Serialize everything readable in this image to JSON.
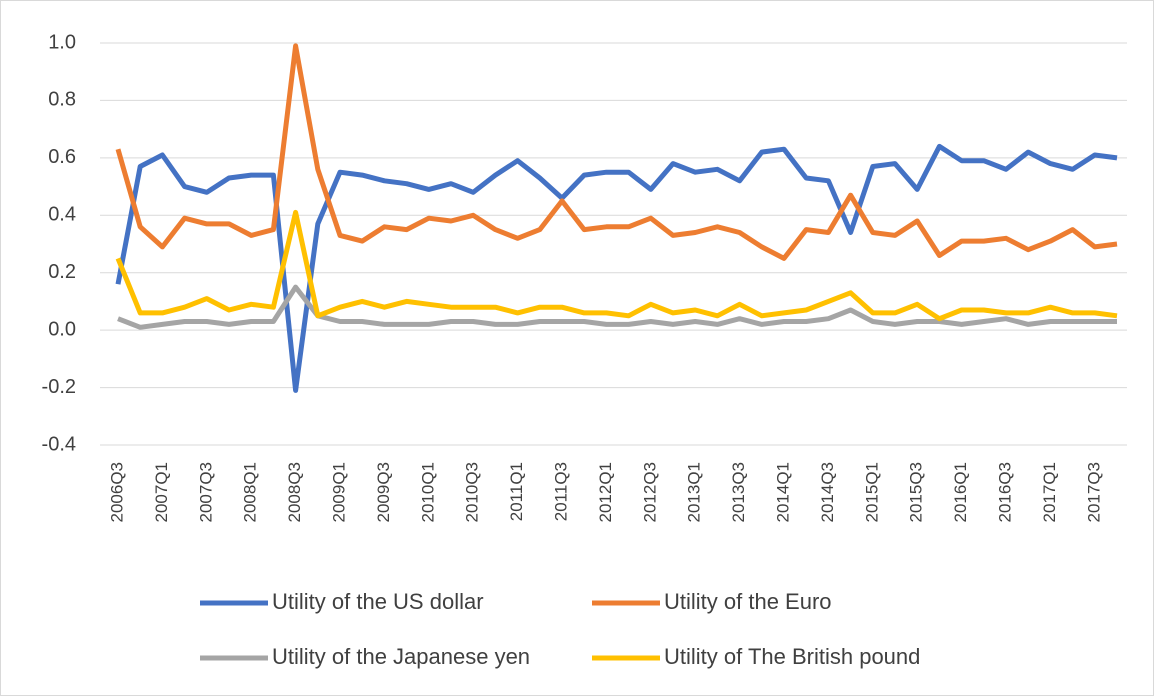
{
  "chart_data": {
    "type": "line",
    "categories": [
      "2006Q3",
      null,
      "2007Q1",
      null,
      "2007Q3",
      null,
      "2008Q1",
      null,
      "2008Q3",
      null,
      "2009Q1",
      null,
      "2009Q3",
      null,
      "2010Q1",
      null,
      "2010Q3",
      null,
      "2011Q1",
      null,
      "2011Q3",
      null,
      "2012Q1",
      null,
      "2012Q3",
      null,
      "2013Q1",
      null,
      "2013Q3",
      null,
      "2014Q1",
      null,
      "2014Q3",
      null,
      "2015Q1",
      null,
      "2015Q3",
      null,
      "2016Q1",
      null,
      "2016Q3",
      null,
      "2017Q1",
      null,
      "2017Q3",
      null
    ],
    "series": [
      {
        "name": "Utility of the US dollar",
        "color": "#4472c4",
        "values": [
          0.16,
          0.57,
          0.61,
          0.5,
          0.48,
          0.53,
          0.54,
          0.54,
          -0.21,
          0.37,
          0.55,
          0.54,
          0.52,
          0.51,
          0.49,
          0.51,
          0.48,
          0.54,
          0.59,
          0.53,
          0.46,
          0.54,
          0.55,
          0.55,
          0.49,
          0.58,
          0.55,
          0.56,
          0.52,
          0.62,
          0.63,
          0.53,
          0.52,
          0.34,
          0.57,
          0.58,
          0.49,
          0.64,
          0.59,
          0.59,
          0.56,
          0.62,
          0.58,
          0.56,
          0.61,
          0.6
        ]
      },
      {
        "name": "Utility of the Euro",
        "color": "#ed7d31",
        "values": [
          0.63,
          0.36,
          0.29,
          0.39,
          0.37,
          0.37,
          0.33,
          0.35,
          0.99,
          0.56,
          0.33,
          0.31,
          0.36,
          0.35,
          0.39,
          0.38,
          0.4,
          0.35,
          0.32,
          0.35,
          0.45,
          0.35,
          0.36,
          0.36,
          0.39,
          0.33,
          0.34,
          0.36,
          0.34,
          0.29,
          0.25,
          0.35,
          0.34,
          0.47,
          0.34,
          0.33,
          0.38,
          0.26,
          0.31,
          0.31,
          0.32,
          0.28,
          0.31,
          0.35,
          0.29,
          0.3
        ]
      },
      {
        "name": "Utility of the Japanese yen",
        "color": "#a5a5a5",
        "values": [
          0.04,
          0.01,
          0.02,
          0.03,
          0.03,
          0.02,
          0.03,
          0.03,
          0.15,
          0.05,
          0.03,
          0.03,
          0.02,
          0.02,
          0.02,
          0.03,
          0.03,
          0.02,
          0.02,
          0.03,
          0.03,
          0.03,
          0.02,
          0.02,
          0.03,
          0.02,
          0.03,
          0.02,
          0.04,
          0.02,
          0.03,
          0.03,
          0.04,
          0.07,
          0.03,
          0.02,
          0.03,
          0.03,
          0.02,
          0.03,
          0.04,
          0.02,
          0.03,
          0.03,
          0.03,
          0.03
        ]
      },
      {
        "name": "Utility of The British pound",
        "color": "#ffc000",
        "values": [
          0.25,
          0.06,
          0.06,
          0.08,
          0.11,
          0.07,
          0.09,
          0.08,
          0.41,
          0.05,
          0.08,
          0.1,
          0.08,
          0.1,
          0.09,
          0.08,
          0.08,
          0.08,
          0.06,
          0.08,
          0.08,
          0.06,
          0.06,
          0.05,
          0.09,
          0.06,
          0.07,
          0.05,
          0.09,
          0.05,
          0.06,
          0.07,
          0.1,
          0.13,
          0.06,
          0.06,
          0.09,
          0.04,
          0.07,
          0.07,
          0.06,
          0.06,
          0.08,
          0.06,
          0.06,
          0.05
        ]
      }
    ],
    "ylim": [
      -0.4,
      1.0
    ],
    "yticks": [
      -0.4,
      -0.2,
      {
        "value": 0,
        "label": "0.0"
      },
      0.2,
      0.4,
      0.6,
      0.8,
      {
        "value": 1,
        "label": "1.0"
      }
    ],
    "grid": true
  }
}
